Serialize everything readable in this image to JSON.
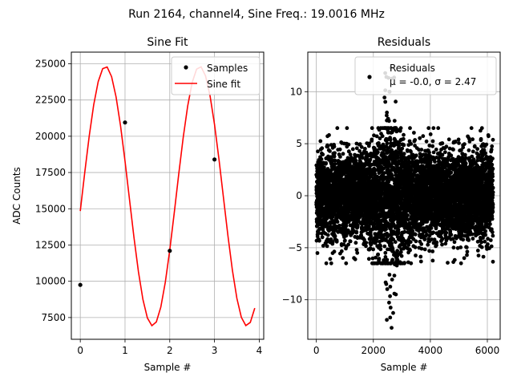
{
  "suptitle": "Run 2164, channel4, Sine Freq.: 19.0016 MHz",
  "chart_data": [
    {
      "type": "line",
      "title": "Sine Fit",
      "xlabel": "Sample #",
      "ylabel": "ADC Counts",
      "xlim": [
        -0.2,
        4.1
      ],
      "ylim": [
        6000,
        25800
      ],
      "xticks": [
        0,
        1,
        2,
        3,
        4
      ],
      "xtick_labels": [
        "0",
        "1",
        "2",
        "3",
        "4"
      ],
      "yticks": [
        7500,
        10000,
        12500,
        15000,
        17500,
        20000,
        22500,
        25000
      ],
      "ytick_labels": [
        "7500",
        "10000",
        "12500",
        "15000",
        "17500",
        "20000",
        "22500",
        "25000"
      ],
      "grid": true,
      "legend": {
        "location": "top-right",
        "entries": [
          "Samples",
          "Sine fit"
        ]
      },
      "series": [
        {
          "name": "Samples",
          "kind": "scatter",
          "color": "#000000",
          "x": [
            0,
            1,
            2,
            3
          ],
          "y": [
            9750,
            20950,
            12100,
            18400
          ]
        },
        {
          "name": "Sine fit",
          "kind": "line",
          "color": "#ff0000",
          "model": {
            "offset": 15875,
            "amplitude": 8950,
            "period": 2.105,
            "phase": -0.1155,
            "x_start": 0,
            "x_end": 3.9,
            "step": 0.1
          }
        }
      ]
    },
    {
      "type": "scatter",
      "title": "Residuals",
      "xlabel": "Sample #",
      "ylabel": "",
      "xlim": [
        -300,
        6450
      ],
      "ylim": [
        -13.8,
        13.8
      ],
      "xticks": [
        0,
        2000,
        4000,
        6000
      ],
      "xtick_labels": [
        "0",
        "2000",
        "4000",
        "6000"
      ],
      "yticks": [
        -10,
        -5,
        0,
        5,
        10
      ],
      "ytick_labels": [
        "−10",
        "−5",
        "0",
        "5",
        "10"
      ],
      "grid": true,
      "legend": {
        "location": "top-right",
        "entries": [
          "Residuals",
          "μ = -0.0, σ = 2.47"
        ]
      },
      "series": [
        {
          "name": "Residuals",
          "color": "#000000",
          "n_points": 6200,
          "mean": 0.0,
          "std": 2.47,
          "x_range": [
            0,
            6200
          ],
          "y_extremes": {
            "max": 12.3,
            "min": -12.7
          }
        }
      ]
    }
  ]
}
